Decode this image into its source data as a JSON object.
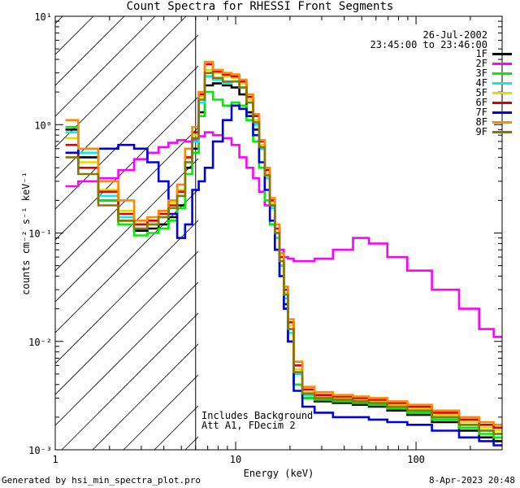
{
  "chart_data": {
    "type": "line",
    "title": "Count Spectra for RHESSI Front Segments",
    "xlabel": "Energy (keV)",
    "ylabel": "counts cm⁻² s⁻¹ keV⁻¹",
    "xscale": "log",
    "yscale": "log",
    "xlim": [
      1,
      300
    ],
    "ylim": [
      0.001,
      10
    ],
    "x_tick_labels": [
      "1",
      "10",
      "100"
    ],
    "y_tick_labels": [
      "10⁻³",
      "10⁻²",
      "10⁻¹",
      "10⁰",
      "10¹"
    ],
    "shaded_region_xmax": 6,
    "date": "26-Jul-2002",
    "time_range": "23:45:00 to 23:46:00",
    "annotations": [
      "Includes Background",
      "Att A1, FDecim 2"
    ],
    "series": [
      {
        "name": "1F",
        "color": "#000000",
        "x": [
          1.2,
          1.5,
          2,
          2.5,
          3,
          3.5,
          4,
          4.5,
          5,
          5.5,
          6,
          6.5,
          7,
          8,
          9,
          10,
          11,
          12,
          13,
          14,
          15,
          16,
          17,
          18,
          19,
          20,
          22,
          25,
          30,
          40,
          50,
          60,
          80,
          100,
          150,
          200,
          250,
          290
        ],
        "y": [
          0.9,
          0.5,
          0.2,
          0.13,
          0.105,
          0.11,
          0.12,
          0.14,
          0.18,
          0.4,
          0.6,
          1.3,
          2.3,
          2.4,
          2.3,
          2.2,
          1.9,
          1.3,
          0.9,
          0.6,
          0.35,
          0.18,
          0.1,
          0.05,
          0.022,
          0.01,
          0.004,
          0.003,
          0.0028,
          0.0027,
          0.0026,
          0.0025,
          0.0023,
          0.0021,
          0.0018,
          0.0015,
          0.0013,
          0.0012
        ]
      },
      {
        "name": "2F",
        "color": "#ff00ff",
        "x": [
          1.2,
          1.5,
          2,
          2.5,
          3,
          3.5,
          4,
          4.5,
          5,
          5.5,
          6,
          6.5,
          7,
          8,
          9,
          10,
          11,
          12,
          13,
          14,
          15,
          16,
          17,
          18,
          19,
          20,
          22,
          25,
          30,
          40,
          50,
          60,
          80,
          100,
          150,
          200,
          250,
          290
        ],
        "y": [
          0.27,
          0.3,
          0.32,
          0.38,
          0.48,
          0.55,
          0.62,
          0.68,
          0.72,
          0.7,
          0.72,
          0.78,
          0.85,
          0.8,
          0.75,
          0.65,
          0.5,
          0.4,
          0.32,
          0.24,
          0.18,
          0.12,
          0.09,
          0.07,
          0.06,
          0.058,
          0.055,
          0.055,
          0.058,
          0.07,
          0.09,
          0.08,
          0.06,
          0.045,
          0.03,
          0.02,
          0.013,
          0.011
        ]
      },
      {
        "name": "3F",
        "color": "#00ee00",
        "x": [
          1.2,
          1.5,
          2,
          2.5,
          3,
          3.5,
          4,
          4.5,
          5,
          5.5,
          6,
          6.5,
          7,
          8,
          9,
          10,
          11,
          12,
          13,
          14,
          15,
          16,
          17,
          18,
          19,
          20,
          22,
          25,
          30,
          40,
          50,
          60,
          80,
          100,
          150,
          200,
          250,
          290
        ],
        "y": [
          0.95,
          0.6,
          0.2,
          0.12,
          0.095,
          0.1,
          0.11,
          0.13,
          0.17,
          0.35,
          0.55,
          1.2,
          2.0,
          1.7,
          1.5,
          1.6,
          1.5,
          1.1,
          0.7,
          0.4,
          0.2,
          0.12,
          0.07,
          0.04,
          0.02,
          0.01,
          0.004,
          0.003,
          0.0029,
          0.0028,
          0.0027,
          0.0026,
          0.0024,
          0.0022,
          0.0019,
          0.0016,
          0.0014,
          0.0013
        ]
      },
      {
        "name": "4F",
        "color": "#00eeee",
        "x": [
          1.2,
          1.5,
          2,
          2.5,
          3,
          3.5,
          4,
          4.5,
          5,
          5.5,
          6,
          6.5,
          7,
          8,
          9,
          10,
          11,
          12,
          13,
          14,
          15,
          16,
          17,
          18,
          19,
          20,
          22,
          25,
          30,
          40,
          50,
          60,
          80,
          100,
          150,
          200,
          250,
          290
        ],
        "y": [
          0.85,
          0.55,
          0.22,
          0.14,
          0.11,
          0.12,
          0.14,
          0.17,
          0.22,
          0.45,
          0.7,
          1.6,
          2.8,
          2.6,
          2.4,
          2.5,
          2.2,
          1.6,
          1.0,
          0.6,
          0.32,
          0.17,
          0.09,
          0.05,
          0.025,
          0.012,
          0.005,
          0.0032,
          0.003,
          0.0029,
          0.0028,
          0.0027,
          0.0025,
          0.0023,
          0.002,
          0.0017,
          0.0015,
          0.0014
        ]
      },
      {
        "name": "5F",
        "color": "#dddd00",
        "x": [
          1.2,
          1.5,
          2,
          2.5,
          3,
          3.5,
          4,
          4.5,
          5,
          5.5,
          6,
          6.5,
          7,
          8,
          9,
          10,
          11,
          12,
          13,
          14,
          15,
          16,
          17,
          18,
          19,
          20,
          22,
          25,
          30,
          40,
          50,
          60,
          80,
          100,
          150,
          200,
          250,
          290
        ],
        "y": [
          0.75,
          0.45,
          0.25,
          0.16,
          0.12,
          0.13,
          0.15,
          0.19,
          0.25,
          0.5,
          0.8,
          1.8,
          3.2,
          3.0,
          2.8,
          2.7,
          2.4,
          1.7,
          1.1,
          0.65,
          0.35,
          0.19,
          0.1,
          0.055,
          0.028,
          0.014,
          0.0055,
          0.0034,
          0.0031,
          0.003,
          0.0029,
          0.0028,
          0.0026,
          0.0024,
          0.0021,
          0.0018,
          0.0016,
          0.0015
        ]
      },
      {
        "name": "6F",
        "color": "#dd0000",
        "x": [
          1.2,
          1.5,
          2,
          2.5,
          3,
          3.5,
          4,
          4.5,
          5,
          5.5,
          6,
          6.5,
          7,
          8,
          9,
          10,
          11,
          12,
          13,
          14,
          15,
          16,
          17,
          18,
          19,
          20,
          22,
          25,
          30,
          40,
          50,
          60,
          80,
          100,
          150,
          200,
          250,
          290
        ],
        "y": [
          0.65,
          0.4,
          0.24,
          0.15,
          0.12,
          0.13,
          0.15,
          0.18,
          0.24,
          0.5,
          0.85,
          1.9,
          3.6,
          3.1,
          2.9,
          2.8,
          2.5,
          1.8,
          1.2,
          0.7,
          0.38,
          0.2,
          0.11,
          0.06,
          0.03,
          0.015,
          0.006,
          0.0036,
          0.0032,
          0.0031,
          0.003,
          0.0029,
          0.0027,
          0.0025,
          0.0022,
          0.0019,
          0.0017,
          0.0016
        ]
      },
      {
        "name": "7F",
        "color": "#0000dd",
        "x": [
          1.2,
          1.5,
          2,
          2.5,
          3,
          3.5,
          4,
          4.5,
          5,
          5.5,
          6,
          6.5,
          7,
          8,
          9,
          10,
          11,
          12,
          13,
          14,
          15,
          16,
          17,
          18,
          19,
          20,
          22,
          25,
          30,
          40,
          50,
          60,
          80,
          100,
          150,
          200,
          250,
          290
        ],
        "y": [
          0.55,
          0.6,
          0.6,
          0.65,
          0.6,
          0.45,
          0.3,
          0.15,
          0.09,
          0.12,
          0.25,
          0.3,
          0.4,
          0.7,
          1.1,
          1.5,
          1.4,
          1.2,
          0.8,
          0.45,
          0.25,
          0.13,
          0.07,
          0.04,
          0.02,
          0.01,
          0.0035,
          0.0025,
          0.0022,
          0.002,
          0.002,
          0.0019,
          0.0018,
          0.0017,
          0.0015,
          0.0013,
          0.0012,
          0.0011
        ]
      },
      {
        "name": "8F",
        "color": "#ff8800",
        "x": [
          1.2,
          1.5,
          2,
          2.5,
          3,
          3.5,
          4,
          4.5,
          5,
          5.5,
          6,
          6.5,
          7,
          8,
          9,
          10,
          11,
          12,
          13,
          14,
          15,
          16,
          17,
          18,
          19,
          20,
          22,
          25,
          30,
          40,
          50,
          60,
          80,
          100,
          150,
          200,
          250,
          290
        ],
        "y": [
          1.1,
          0.6,
          0.3,
          0.2,
          0.13,
          0.14,
          0.16,
          0.2,
          0.28,
          0.6,
          0.95,
          2.0,
          3.8,
          3.2,
          3.0,
          2.9,
          2.6,
          1.9,
          1.25,
          0.72,
          0.4,
          0.21,
          0.12,
          0.065,
          0.032,
          0.016,
          0.0065,
          0.0038,
          0.0034,
          0.0032,
          0.0031,
          0.003,
          0.0028,
          0.0026,
          0.0023,
          0.002,
          0.0018,
          0.0017
        ]
      },
      {
        "name": "9F",
        "color": "#887700",
        "x": [
          1.2,
          1.5,
          2,
          2.5,
          3,
          3.5,
          4,
          4.5,
          5,
          5.5,
          6,
          6.5,
          7,
          8,
          9,
          10,
          11,
          12,
          13,
          14,
          15,
          16,
          17,
          18,
          19,
          20,
          22,
          25,
          30,
          40,
          50,
          60,
          80,
          100,
          150,
          200,
          250,
          290
        ],
        "y": [
          0.5,
          0.35,
          0.18,
          0.13,
          0.11,
          0.12,
          0.14,
          0.17,
          0.22,
          0.45,
          0.75,
          1.7,
          3.0,
          2.7,
          2.5,
          2.5,
          2.2,
          1.6,
          1.05,
          0.62,
          0.34,
          0.18,
          0.1,
          0.055,
          0.027,
          0.013,
          0.0052,
          0.0033,
          0.003,
          0.0029,
          0.0028,
          0.0027,
          0.0025,
          0.0023,
          0.002,
          0.0017,
          0.0015,
          0.0014
        ]
      }
    ]
  },
  "footer": {
    "generated_by": "Generated by hsi_min_spectra_plot.pro",
    "timestamp": "8-Apr-2023 20:48"
  }
}
